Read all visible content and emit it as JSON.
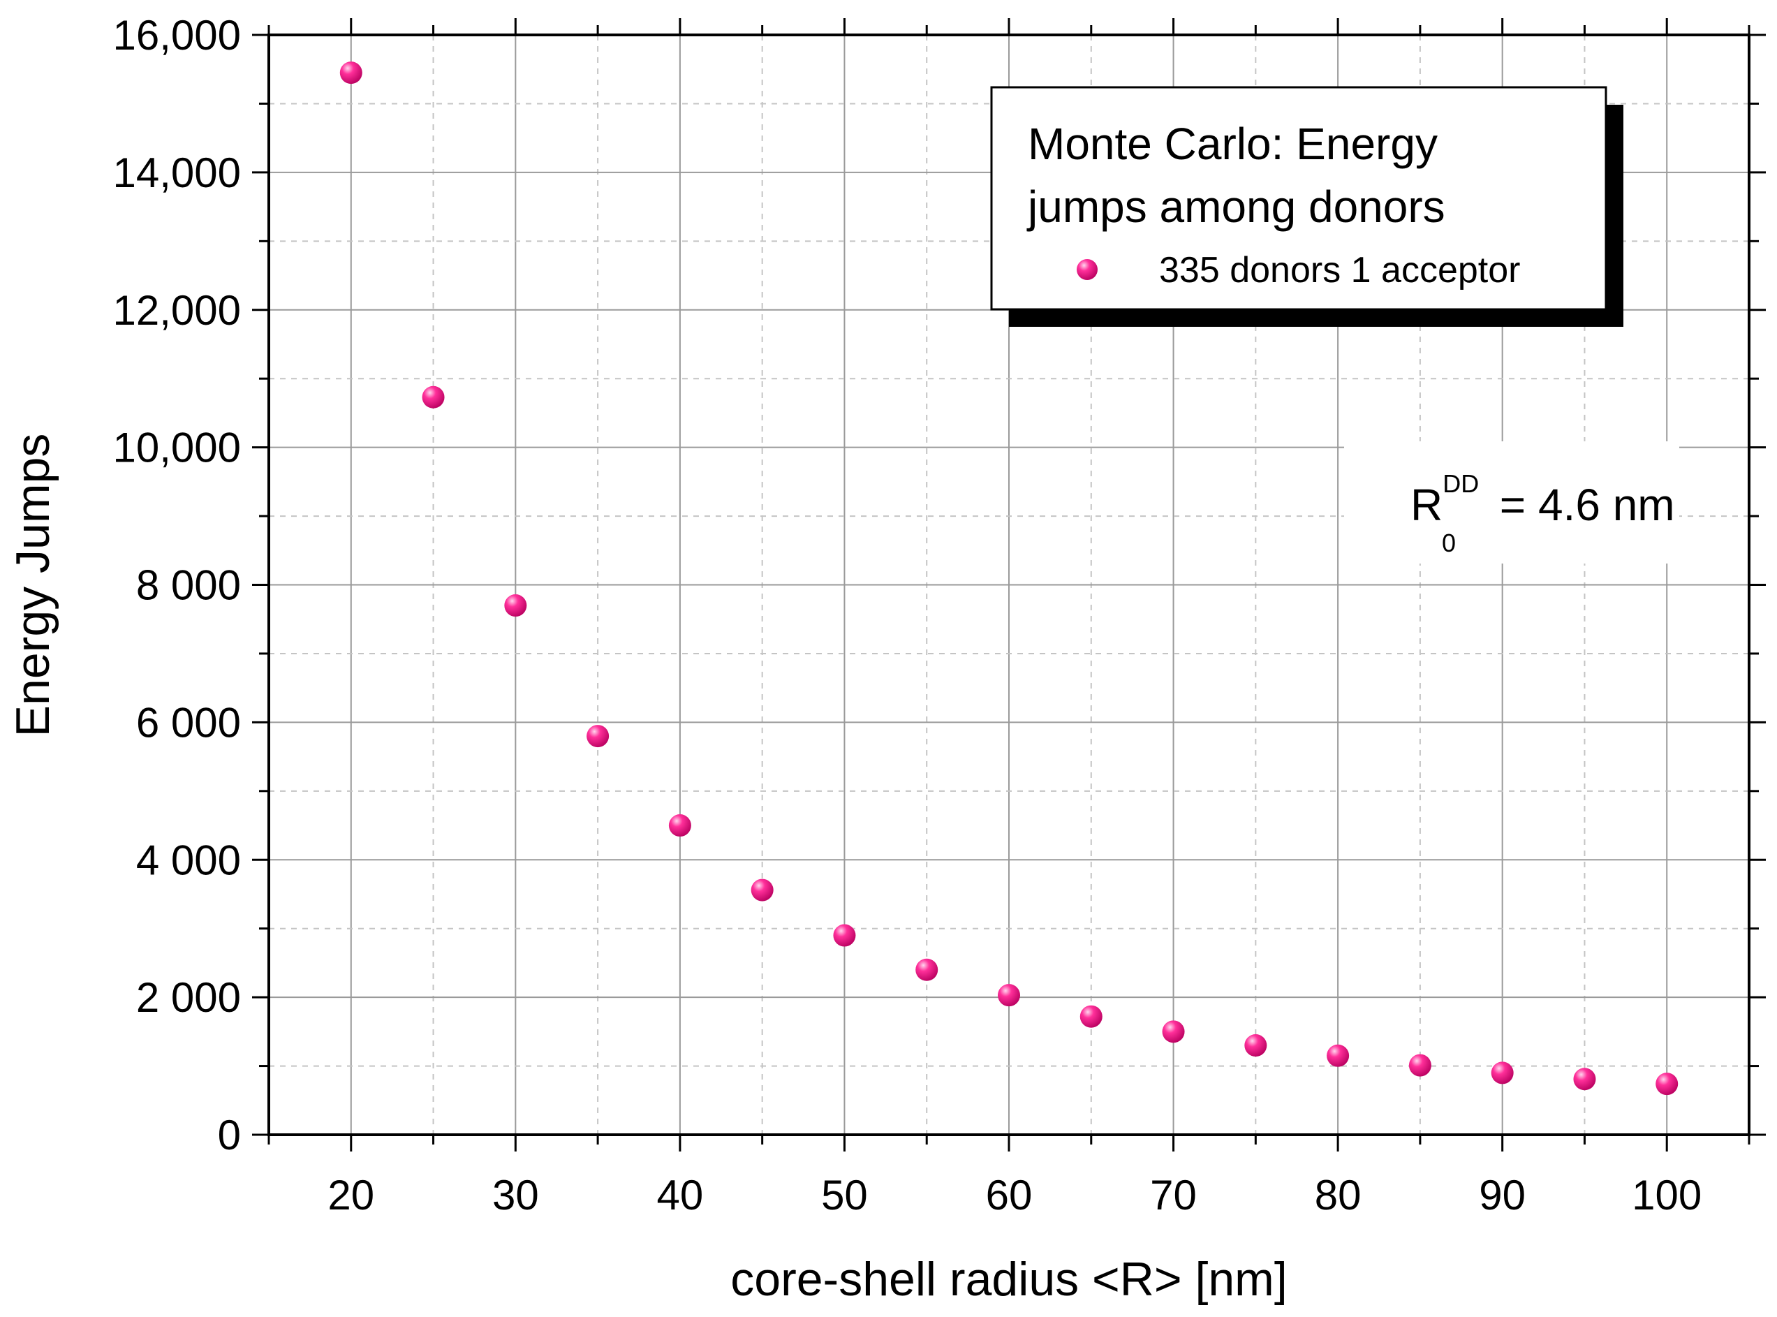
{
  "chart_data": {
    "type": "scatter",
    "title": "",
    "xlabel": "core-shell radius <R> [nm]",
    "ylabel": "Energy Jumps",
    "xlim": [
      15,
      105
    ],
    "ylim": [
      0,
      16000
    ],
    "grid": true,
    "x_ticks": [
      20,
      30,
      40,
      50,
      60,
      70,
      80,
      90,
      100
    ],
    "x_tick_labels": [
      "20",
      "30",
      "40",
      "50",
      "60",
      "70",
      "80",
      "90",
      "100"
    ],
    "y_ticks": [
      0,
      2000,
      4000,
      6000,
      8000,
      10000,
      12000,
      14000,
      16000
    ],
    "y_tick_labels": [
      "0",
      "2 000",
      "4 000",
      "6 000",
      "8 000",
      "10,000",
      "12,000",
      "14,000",
      "16,000"
    ],
    "legend": {
      "position": "top-right",
      "title_lines": [
        "Monte Carlo: Energy",
        "jumps among donors"
      ]
    },
    "series": [
      {
        "name": "335 donors 1 acceptor",
        "color": "#e6007e",
        "x": [
          20,
          25,
          30,
          35,
          40,
          45,
          50,
          55,
          60,
          65,
          70,
          75,
          80,
          85,
          90,
          95,
          100
        ],
        "values": [
          15450,
          10730,
          7700,
          5800,
          4500,
          3560,
          2900,
          2400,
          2030,
          1720,
          1500,
          1300,
          1150,
          1010,
          900,
          810,
          740
        ]
      }
    ],
    "annotation": {
      "symbol": "R",
      "superscript": "DD",
      "subscript": "0",
      "text": " = 4.6 nm"
    }
  }
}
